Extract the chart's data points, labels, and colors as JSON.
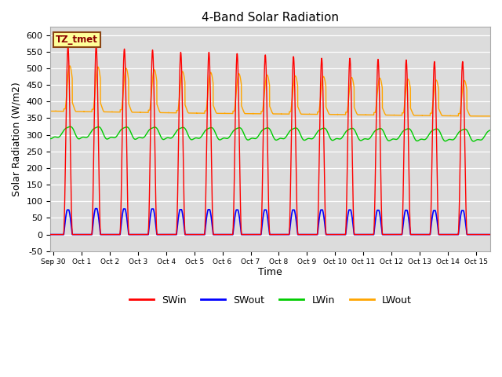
{
  "title": "4-Band Solar Radiation",
  "ylabel": "Solar Radiation (W/m2)",
  "xlabel": "Time",
  "tz_label": "TZ_tmet",
  "ylim": [
    -50,
    625
  ],
  "xlim": [
    -0.1,
    15.5
  ],
  "colors": {
    "SWin": "#ff0000",
    "SWout": "#0000ff",
    "LWin": "#00cc00",
    "LWout": "#ffa500"
  },
  "bg_color": "#dcdcdc",
  "tick_labels": [
    "Sep 30",
    "Oct 1",
    "Oct 2",
    "Oct 3",
    "Oct 4",
    "Oct 5",
    "Oct 6",
    "Oct 7",
    "Oct 8",
    "Oct 9",
    "Oct 10",
    "Oct 11",
    "Oct 12",
    "Oct 13",
    "Oct 14",
    "Oct 15"
  ],
  "tick_positions": [
    0,
    1,
    2,
    3,
    4,
    5,
    6,
    7,
    8,
    9,
    10,
    11,
    12,
    13,
    14,
    15
  ],
  "yticks": [
    -50,
    0,
    50,
    100,
    150,
    200,
    250,
    300,
    350,
    400,
    450,
    500,
    550,
    600
  ]
}
